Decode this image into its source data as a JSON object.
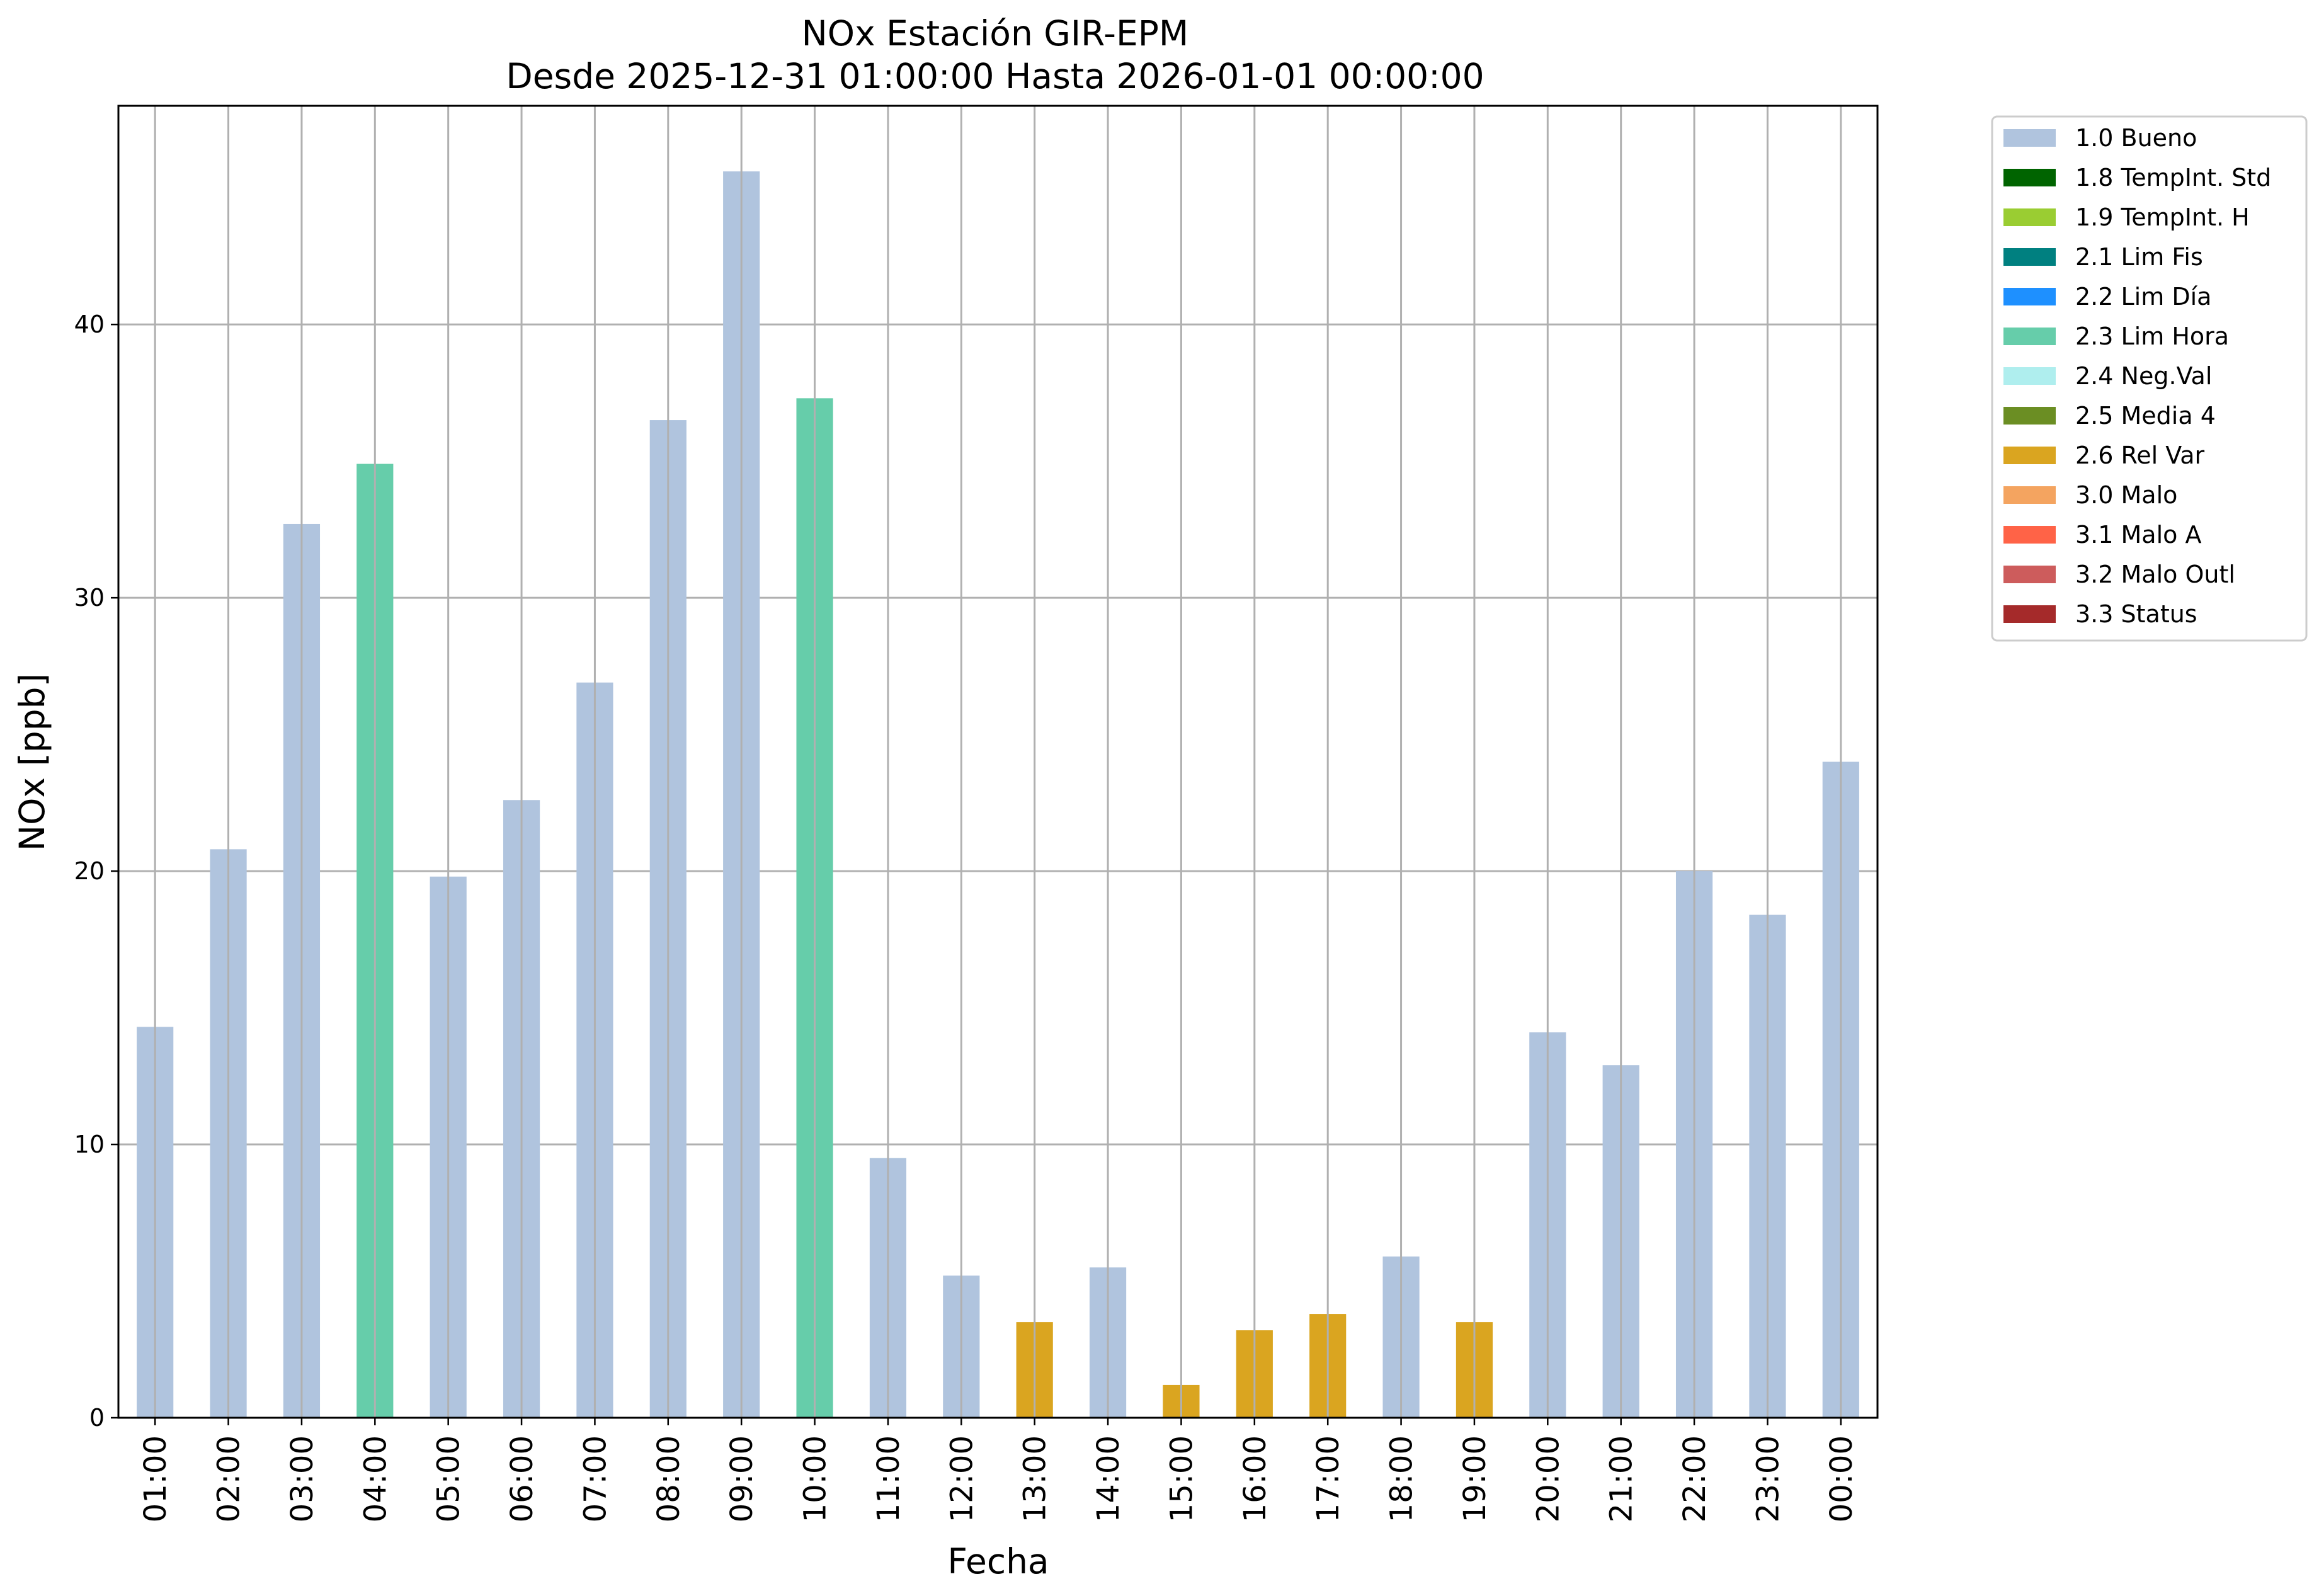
{
  "chart_data": {
    "type": "bar",
    "title": "NOx Estación GIR-EPM",
    "subtitle": "Desde 2025-12-31 01:00:00 Hasta 2026-01-01 00:00:00",
    "xlabel": "Fecha",
    "ylabel": "NOx [ppb]",
    "ylim": [
      0,
      48
    ],
    "yticks": [
      0,
      10,
      20,
      30,
      40
    ],
    "grid": true,
    "legend_position": "outside-top-right",
    "categories": [
      "01:00",
      "02:00",
      "03:00",
      "04:00",
      "05:00",
      "06:00",
      "07:00",
      "08:00",
      "09:00",
      "10:00",
      "11:00",
      "12:00",
      "13:00",
      "14:00",
      "15:00",
      "16:00",
      "17:00",
      "18:00",
      "19:00",
      "20:00",
      "21:00",
      "22:00",
      "23:00",
      "00:00"
    ],
    "values": [
      14.3,
      20.8,
      32.7,
      34.9,
      19.8,
      22.6,
      26.9,
      36.5,
      45.6,
      37.3,
      9.5,
      5.2,
      3.5,
      5.5,
      1.2,
      3.2,
      3.8,
      5.9,
      3.5,
      14.1,
      12.9,
      20.0,
      18.4,
      24.0
    ],
    "flags": [
      "1.0 Bueno",
      "1.0 Bueno",
      "1.0 Bueno",
      "2.3 Lim Hora",
      "1.0 Bueno",
      "1.0 Bueno",
      "1.0 Bueno",
      "1.0 Bueno",
      "1.0 Bueno",
      "2.3 Lim Hora",
      "1.0 Bueno",
      "1.0 Bueno",
      "2.6 Rel Var",
      "1.0 Bueno",
      "2.6 Rel Var",
      "2.6 Rel Var",
      "2.6 Rel Var",
      "1.0 Bueno",
      "2.6 Rel Var",
      "1.0 Bueno",
      "1.0 Bueno",
      "1.0 Bueno",
      "1.0 Bueno",
      "1.0 Bueno"
    ],
    "legend": [
      {
        "label": "1.0 Bueno",
        "color": "#b0c4de"
      },
      {
        "label": "1.8 TempInt. Std",
        "color": "#006400"
      },
      {
        "label": "1.9 TempInt. H",
        "color": "#9acd32"
      },
      {
        "label": "2.1 Lim Fis",
        "color": "#008080"
      },
      {
        "label": "2.2 Lim Día",
        "color": "#1e90ff"
      },
      {
        "label": "2.3 Lim Hora",
        "color": "#66cdaa"
      },
      {
        "label": "2.4 Neg.Val",
        "color": "#afeeee"
      },
      {
        "label": "2.5 Media 4",
        "color": "#6b8e23"
      },
      {
        "label": "2.6 Rel Var",
        "color": "#daa520"
      },
      {
        "label": "3.0 Malo",
        "color": "#f4a460"
      },
      {
        "label": "3.1 Malo A",
        "color": "#ff6347"
      },
      {
        "label": "3.2 Malo Outl",
        "color": "#cd5c5c"
      },
      {
        "label": "3.3 Status",
        "color": "#a52a2a"
      }
    ]
  }
}
